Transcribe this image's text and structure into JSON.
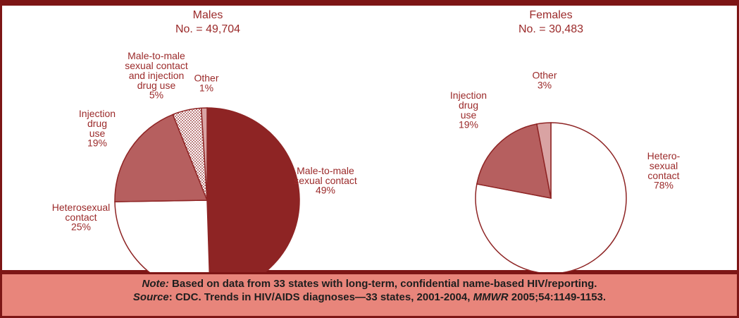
{
  "chart_data": [
    {
      "type": "pie",
      "title": "Males",
      "subtitle": "No. = 49,704",
      "categories": [
        "Male-to-male\nsexual contact",
        "Heterosexual\ncontact",
        "Injection\ndrug\nuse",
        "Male-to-male\nsexual contact\nand injection\ndrug use",
        "Other"
      ],
      "values": [
        49,
        25,
        19,
        5,
        1
      ],
      "value_labels": [
        "49%",
        "25%",
        "19%",
        "5%",
        "1%"
      ],
      "colors": [
        "#8e2424",
        "#ffffff",
        "#b65f5f",
        "#ffffff",
        "#d9a3a3"
      ],
      "patterns": [
        null,
        null,
        null,
        "dotted",
        null
      ]
    },
    {
      "type": "pie",
      "title": "Females",
      "subtitle": "No. = 30,483",
      "categories": [
        "Hetero-\nsexual\ncontact",
        "Injection\ndrug\nuse",
        "Other"
      ],
      "values": [
        78,
        19,
        3
      ],
      "value_labels": [
        "78%",
        "19%",
        "3%"
      ],
      "colors": [
        "#ffffff",
        "#b65f5f",
        "#d9a3a3"
      ],
      "patterns": [
        null,
        null,
        null
      ]
    }
  ],
  "footer": {
    "note_label": "Note:",
    "note_text": " Based on data from 33 states with long-term, confidential name-based HIV/reporting.",
    "source_label": "Source",
    "source_text": ": CDC. Trends in HIV/AIDS diagnoses—33 states, 2001-2004, ",
    "source_journal": "MMWR",
    "source_citation": " 2005;54:1149-1153."
  }
}
